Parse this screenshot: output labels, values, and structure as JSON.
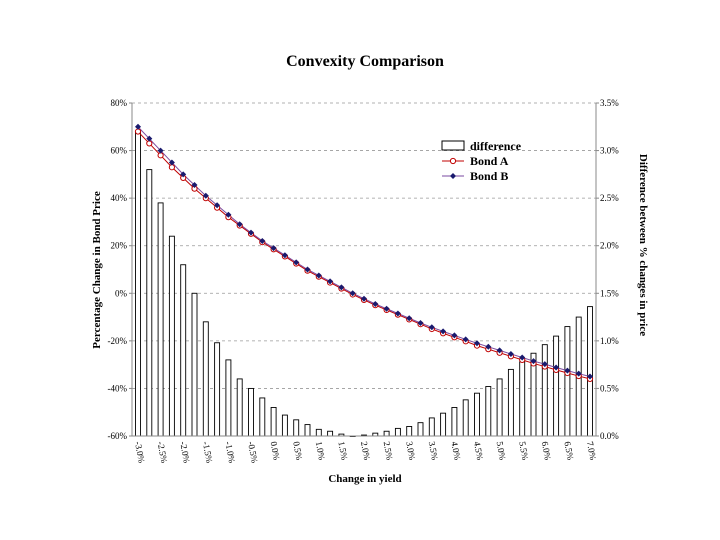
{
  "chart_data": {
    "type": "bar",
    "title": "Convexity Comparison",
    "xlabel": "Change in yield",
    "ylabel": "Percentage Change in Bond Price",
    "y2label": "Difference between % changes in price",
    "ylim": [
      -60,
      80
    ],
    "yticks": [
      "80%",
      "60%",
      "40%",
      "20%",
      "0%",
      "-20%",
      "-40%",
      "-60%"
    ],
    "y2lim": [
      0,
      3.5
    ],
    "y2ticks": [
      "3.5%",
      "3.0%",
      "2.5%",
      "2.0%",
      "1.5%",
      "1.0%",
      "0.5%",
      "0.0%"
    ],
    "xticks": [
      "-3.0%",
      "-2.5%",
      "-2.0%",
      "-1.5%",
      "-1.0%",
      "-0.5%",
      "0.0%",
      "0.5%",
      "1.0%",
      "1.5%",
      "2.0%",
      "2.5%",
      "3.0%",
      "3.5%",
      "4.0%",
      "4.5%",
      "5.0%",
      "5.5%",
      "6.0%",
      "6.5%",
      "7.0%"
    ],
    "x": [
      -3.0,
      -2.75,
      -2.5,
      -2.25,
      -2.0,
      -1.75,
      -1.5,
      -1.25,
      -1.0,
      -0.75,
      -0.5,
      -0.25,
      0.0,
      0.25,
      0.5,
      0.75,
      1.0,
      1.25,
      1.5,
      1.75,
      2.0,
      2.25,
      2.5,
      2.75,
      3.0,
      3.25,
      3.5,
      3.75,
      4.0,
      4.25,
      4.5,
      4.75,
      5.0,
      5.25,
      5.5,
      5.75,
      6.0,
      6.25,
      6.5,
      6.75,
      7.0
    ],
    "legend_position": "top-right",
    "grid": true,
    "series": [
      {
        "name": "difference",
        "kind": "bar",
        "axis": "secondary",
        "values": [
          3.2,
          2.8,
          2.45,
          2.1,
          1.8,
          1.5,
          1.2,
          0.98,
          0.8,
          0.6,
          0.5,
          0.4,
          0.3,
          0.22,
          0.17,
          0.12,
          0.07,
          0.05,
          0.02,
          0.0,
          0.01,
          0.03,
          0.05,
          0.08,
          0.1,
          0.14,
          0.19,
          0.24,
          0.3,
          0.38,
          0.45,
          0.52,
          0.6,
          0.7,
          0.78,
          0.87,
          0.96,
          1.05,
          1.15,
          1.25,
          1.36
        ]
      },
      {
        "name": "Bond A",
        "kind": "line-circle",
        "axis": "primary",
        "values": [
          68,
          63,
          58,
          53,
          48.5,
          44,
          40,
          36,
          32,
          28.5,
          25,
          21.5,
          18.5,
          15.5,
          12.5,
          9.5,
          7,
          4.5,
          2,
          -0.5,
          -2.8,
          -5,
          -7,
          -9,
          -11,
          -13,
          -15,
          -16.8,
          -18.5,
          -20.2,
          -22,
          -23.5,
          -25,
          -26.5,
          -28,
          -29.5,
          -30.8,
          -32.2,
          -33.5,
          -34.8,
          -36
        ]
      },
      {
        "name": "Bond B",
        "kind": "line-diamond",
        "axis": "primary",
        "values": [
          70,
          65,
          60,
          55,
          50,
          45.5,
          41,
          37,
          33,
          29,
          25.5,
          22,
          19,
          16,
          13,
          10,
          7.5,
          5,
          2.5,
          0,
          -2.3,
          -4.5,
          -6.5,
          -8.5,
          -10.5,
          -12.5,
          -14.3,
          -16,
          -17.7,
          -19.4,
          -21,
          -22.5,
          -24,
          -25.5,
          -27,
          -28.5,
          -29.8,
          -31.2,
          -32.5,
          -33.8,
          -35
        ]
      }
    ]
  },
  "colors": {
    "bondA": "#c00000",
    "bondB": "#1a1a6e",
    "bondB_line": "#7a4aa0",
    "bars": "#000000",
    "grid": "#999999"
  }
}
